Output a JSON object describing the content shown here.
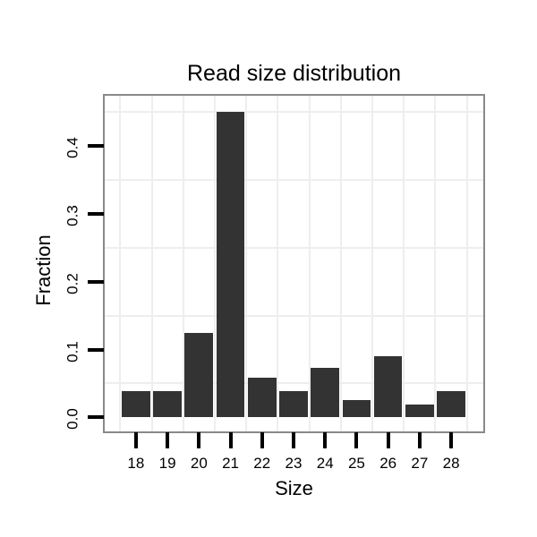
{
  "chart_data": {
    "type": "bar",
    "title": "Read size distribution",
    "xlabel": "Size",
    "ylabel": "Fraction",
    "categories": [
      "18",
      "19",
      "20",
      "21",
      "22",
      "23",
      "24",
      "25",
      "26",
      "27",
      "28"
    ],
    "values": [
      0.039,
      0.039,
      0.125,
      0.45,
      0.059,
      0.039,
      0.073,
      0.026,
      0.09,
      0.019,
      0.039
    ],
    "y_ticks": [
      0,
      0.1,
      0.2,
      0.3,
      0.4
    ],
    "y_tick_labels": [
      "0.0",
      "0.1",
      "0.2",
      "0.3",
      "0.4"
    ],
    "ylim": [
      -0.0207,
      0.4743
    ],
    "minor_gridlines_y": [
      0.05,
      0.15,
      0.25,
      0.35,
      0.45
    ],
    "grid": "minor gridlines only, horizontal at 0.05 steps and vertical between categories",
    "legend": "none",
    "colors": {
      "bar_fill": "#333333",
      "panel_border": "#898989",
      "gridline": "#eeeeee",
      "tick": "#000000",
      "text": "#000000",
      "background": "#ffffff"
    }
  }
}
